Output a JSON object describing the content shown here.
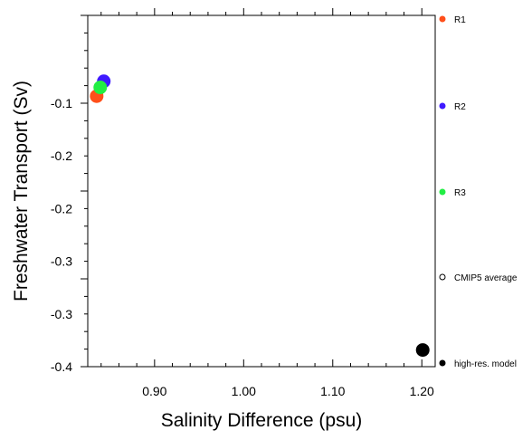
{
  "chart_data": {
    "type": "scatter",
    "title": "",
    "xlabel": "Salinity Difference (psu)",
    "ylabel": "Freshwater Transport (Sv)",
    "xlim": [
      0.825,
      1.215
    ],
    "ylim": [
      -0.4,
      0.0
    ],
    "grid": false,
    "legend_position": "right",
    "x_ticks": [
      {
        "value": 0.9,
        "label": "0.90"
      },
      {
        "value": 1.0,
        "label": "1.00"
      },
      {
        "value": 1.1,
        "label": "1.10"
      },
      {
        "value": 1.2,
        "label": "1.20"
      }
    ],
    "y_ticks": [
      {
        "value": -0.1,
        "label": "-0.1"
      },
      {
        "value": -0.2,
        "label": "-0.2"
      },
      {
        "value": -0.3,
        "label": "-0.3"
      },
      {
        "value": -0.4,
        "label": "-0.4"
      }
    ],
    "y_tick_labels_printed": [
      "-0.1",
      "-0.2",
      "-0.2",
      "-0.3",
      "-0.3",
      "-0.4"
    ],
    "series": [
      {
        "name": "R1",
        "color": "#ff4f1a",
        "points": [
          {
            "x": 0.835,
            "y": -0.092
          }
        ]
      },
      {
        "name": "R2",
        "color": "#3f1aff",
        "points": [
          {
            "x": 0.843,
            "y": -0.075
          }
        ]
      },
      {
        "name": "R3",
        "color": "#22ee44",
        "points": [
          {
            "x": 0.839,
            "y": -0.082
          }
        ]
      },
      {
        "name": "CMIP5 average",
        "color": "#000000",
        "hollow": true,
        "points": []
      },
      {
        "name": "high-res. model",
        "color": "#000000",
        "points": [
          {
            "x": 1.201,
            "y": -0.381
          }
        ]
      }
    ]
  }
}
